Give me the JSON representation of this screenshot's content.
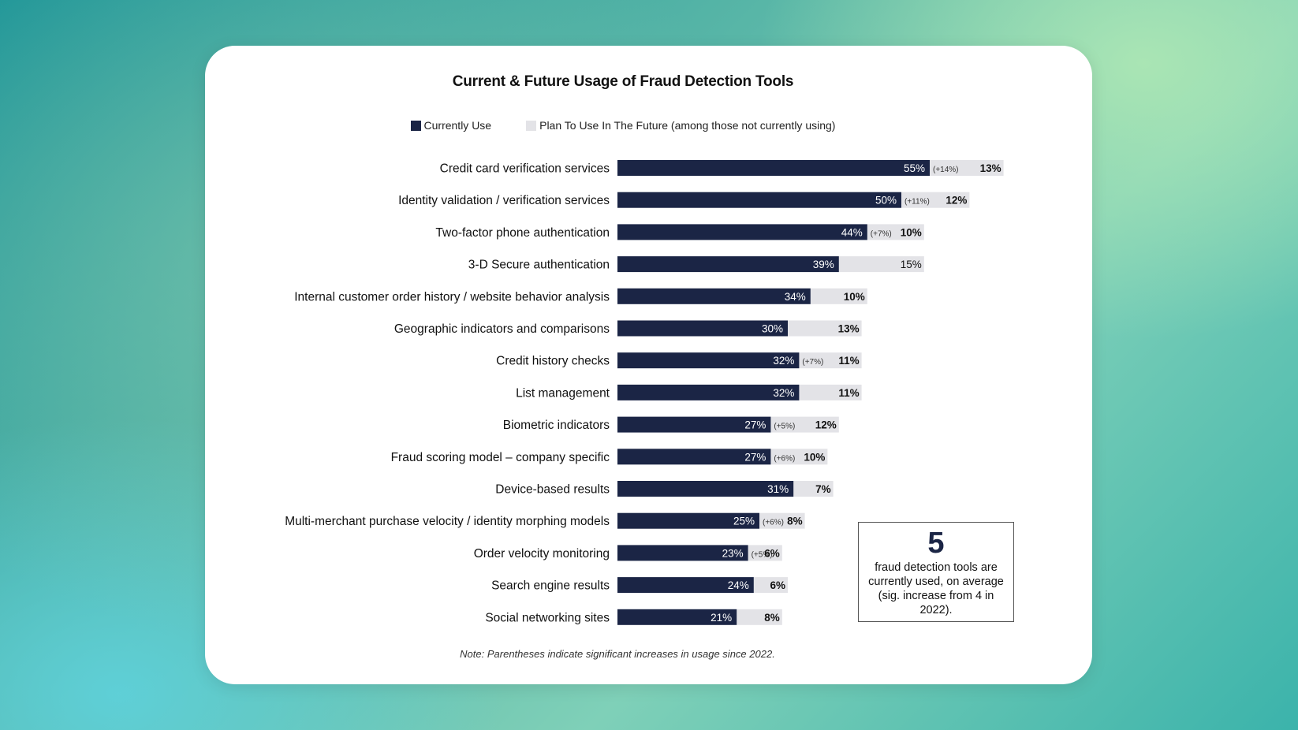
{
  "colors": {
    "current": "#1b2545",
    "future": "#e3e3e7"
  },
  "chart_data": {
    "type": "bar",
    "orientation": "horizontal",
    "stacked": true,
    "title": "Current & Future Usage of Fraud Detection Tools",
    "legend_position": "top",
    "series": [
      {
        "name": "Currently Use",
        "values": [
          55,
          50,
          44,
          39,
          34,
          30,
          32,
          32,
          27,
          27,
          31,
          25,
          23,
          24,
          21
        ],
        "labels": [
          "55%",
          "50%",
          "44%",
          "39%",
          "34%",
          "30%",
          "32%",
          "32%",
          "27%",
          "27%",
          "31%",
          "25%",
          "23%",
          "24%",
          "21%"
        ]
      },
      {
        "name": "Plan To Use In The Future (among those not currently using)",
        "values": [
          13,
          12,
          10,
          15,
          10,
          13,
          11,
          11,
          12,
          10,
          7,
          8,
          6,
          6,
          8
        ],
        "labels": [
          "13%",
          "12%",
          "10%",
          "15%",
          "10%",
          "13%",
          "11%",
          "11%",
          "12%",
          "10%",
          "7%",
          "8%",
          "6%",
          "6%",
          "8%"
        ],
        "bold": [
          true,
          true,
          true,
          false,
          true,
          true,
          true,
          true,
          true,
          true,
          true,
          true,
          true,
          true,
          true
        ]
      }
    ],
    "categories": [
      "Credit card verification services",
      "Identity validation / verification services",
      "Two-factor phone authentication",
      "3-D Secure authentication",
      "Internal customer order history / website behavior analysis",
      "Geographic indicators and comparisons",
      "Credit history checks",
      "List management",
      "Biometric indicators",
      "Fraud scoring model – company specific",
      "Device-based results",
      "Multi-merchant purchase velocity / identity morphing models",
      "Order velocity monitoring",
      "Search engine results",
      "Social networking sites"
    ],
    "increases": [
      "(+14%)",
      "(+11%)",
      "(+7%)",
      "",
      "",
      "",
      "(+7%)",
      "",
      "(+5%)",
      "(+6%)",
      "",
      "(+6%)",
      "(+5%)",
      "",
      ""
    ],
    "note": "Note: Parentheses indicate significant increases in usage since 2022."
  },
  "callout": {
    "number": "5",
    "text": "fraud detection tools are currently used, on average (sig. increase from 4 in 2022)."
  }
}
